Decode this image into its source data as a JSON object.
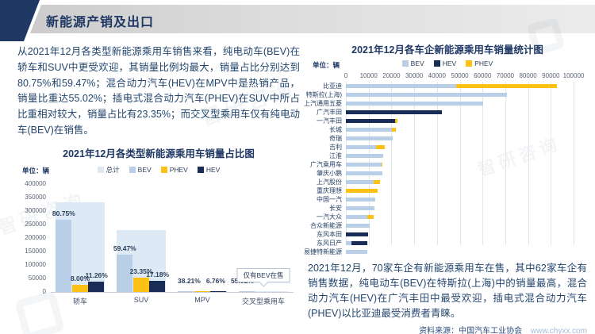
{
  "header": {
    "title": "新能源产销及出口"
  },
  "left_panel": {
    "paragraph": "从2021年12月各类型新能源乘用车销售来看，纯电动车(BEV)在轿车和SUV中更受欢迎，其销量比例均最大，销量占比分别达到80.75%和59.47%；混合动力汽车(HEV)在MPV中是热销产品，销量比重达55.02%；插电式混合动力汽车(PHEV)在SUV中所占比重相对较大，销量占比有23.35%；而交叉型乘用车仅有纯电动车(BEV)在销售。"
  },
  "right_panel": {
    "paragraph": "2021年12月，70家车企有新能源乘用车在售，其中62家车企有销售数据，纯电动车(BEV)在特斯拉(上海)中的销量最高，混合动力汽车(HEV)在广汽丰田中最受欢迎，插电式混合动力汽车(PHEV)以比亚迪最受消费者青睐。",
    "source_label": "资料来源：中国汽车工业协会",
    "source_site": "www.chyxx.com"
  },
  "branding": {
    "watermark_text": "智研咨询"
  },
  "colors": {
    "accent_navy": "#1f3864",
    "banner_gray": "#d9d9d9",
    "text_blue": "#24466e",
    "axis_gray": "#5a6474",
    "bev": "#b9cfe8",
    "hev": "#182c56",
    "phev": "#fcc112",
    "total": "#dde9f5"
  },
  "chart_data": [
    {
      "type": "bar",
      "title": "2021年12月各类型新能源乘用车销量占比图",
      "unit_label": "单位：辆",
      "categories": [
        "轿车",
        "SUV",
        "MPV",
        "交叉型乘用车"
      ],
      "legend": [
        {
          "label": "总计",
          "color": "#dde9f5"
        },
        {
          "label": "BEV",
          "color": "#b9cfe8"
        },
        {
          "label": "PHEV",
          "color": "#fcc112"
        },
        {
          "label": "HEV",
          "color": "#182c56"
        }
      ],
      "ylim": [
        0,
        400000
      ],
      "y_ticks": [
        0,
        50000,
        100000,
        150000,
        200000,
        250000,
        300000,
        350000,
        400000
      ],
      "grid": false,
      "legend_position": "top",
      "series": [
        {
          "name": "总计",
          "role": "background",
          "color": "#dde9f5",
          "values": [
            331000,
            230000,
            2600,
            1100
          ]
        },
        {
          "name": "BEV",
          "color": "#b9cfe8",
          "values": [
            267300,
            136800,
            990,
            1100
          ]
        },
        {
          "name": "PHEV",
          "color": "#fcc112",
          "values": [
            26500,
            53700,
            175,
            0
          ]
        },
        {
          "name": "HEV",
          "color": "#182c56",
          "values": [
            37300,
            39500,
            1430,
            0
          ]
        }
      ],
      "pct_labels": [
        [
          "80.75%",
          "8.00%",
          "11.26%"
        ],
        [
          "59.47%",
          "23.35%",
          "17.18%"
        ],
        [
          "38.21%",
          "6.76%",
          "55.02%"
        ],
        []
      ],
      "annotation": {
        "category": "交叉型乘用车",
        "text": "仅有BEV在售"
      }
    },
    {
      "type": "bar-horizontal-stacked",
      "title": "2021年12月各车企新能源乘用车销量统计图",
      "unit_label": "单位：辆",
      "legend": [
        {
          "label": "BEV",
          "color": "#b9cfe8"
        },
        {
          "label": "HEV",
          "color": "#182c56"
        },
        {
          "label": "PHEV",
          "color": "#fcc112"
        }
      ],
      "xlim": [
        0,
        100000
      ],
      "x_ticks": [
        0,
        10000,
        20000,
        30000,
        40000,
        50000,
        60000,
        70000,
        80000,
        90000,
        100000
      ],
      "grid": true,
      "legend_position": "top",
      "categories": [
        "比亚迪",
        "特斯拉(上海)",
        "上汽通用五菱",
        "广汽丰田",
        "一汽丰田",
        "长城",
        "奇瑞",
        "吉利",
        "江淮",
        "广汽乘用车",
        "肇庆小鹏",
        "上汽股份",
        "重庆理想",
        "中国一汽",
        "长安",
        "一汽大众",
        "合众新能源",
        "东风本田",
        "东风日产",
        "易捷特新能源"
      ],
      "series": [
        {
          "name": "BEV",
          "color": "#b9cfe8",
          "values": [
            48300,
            70800,
            60400,
            0,
            0,
            20200,
            20700,
            13100,
            16300,
            15700,
            16000,
            12300,
            0,
            13000,
            12500,
            9500,
            10400,
            0,
            2500,
            9400
          ]
        },
        {
          "name": "HEV",
          "color": "#182c56",
          "values": [
            0,
            0,
            0,
            42000,
            21500,
            0,
            0,
            0,
            0,
            0,
            0,
            0,
            0,
            0,
            0,
            0,
            0,
            9900,
            7000,
            0
          ]
        },
        {
          "name": "PHEV",
          "color": "#fcc112",
          "values": [
            44500,
            0,
            0,
            0,
            1300,
            1900,
            0,
            3900,
            0,
            400,
            0,
            2600,
            14000,
            0,
            0,
            2800,
            0,
            0,
            0,
            0
          ]
        }
      ]
    }
  ]
}
